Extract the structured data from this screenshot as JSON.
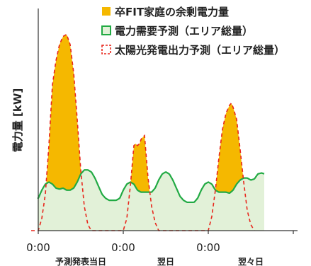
{
  "chart_data": {
    "type": "area",
    "ylabel": "電力量 [kW]",
    "x_ticks": [
      "0:00",
      "0:00",
      "0:00"
    ],
    "day_labels": [
      "予測発表当日",
      "翌日",
      "翌々日"
    ],
    "x_unit": "hours",
    "xlim": [
      -6,
      66
    ],
    "ylim": [
      0,
      1
    ],
    "legend": {
      "placement": "top-right",
      "items": [
        {
          "label": "卒FIT家庭の余剰電力量",
          "style": "filled-square",
          "color": "#f5b800"
        },
        {
          "label": "電力需要予測（エリア総量）",
          "style": "outline-square",
          "color": "#22aa44",
          "fill": "#e2f1d8"
        },
        {
          "label": "太陽光発電出力予測（エリア総量）",
          "style": "dashed-square",
          "color": "#e8261c"
        }
      ]
    },
    "series": [
      {
        "name": "電力需要予測（エリア総量）",
        "color": "#22aa44",
        "fill": "#e2f1d8",
        "points": [
          [
            -6,
            0.22
          ],
          [
            -4,
            0.16
          ],
          [
            -2.5,
            0.15
          ],
          [
            -1,
            0.15
          ],
          [
            0,
            0.16
          ],
          [
            1,
            0.2
          ],
          [
            2,
            0.23
          ],
          [
            3,
            0.24
          ],
          [
            4,
            0.23
          ],
          [
            5,
            0.21
          ],
          [
            6,
            0.205
          ],
          [
            7,
            0.21
          ],
          [
            8,
            0.2
          ],
          [
            9,
            0.2
          ],
          [
            10,
            0.21
          ],
          [
            11,
            0.24
          ],
          [
            12,
            0.28
          ],
          [
            13,
            0.3
          ],
          [
            14,
            0.3
          ],
          [
            15,
            0.29
          ],
          [
            16,
            0.26
          ],
          [
            17,
            0.22
          ],
          [
            18,
            0.18
          ],
          [
            19,
            0.16
          ],
          [
            20,
            0.15
          ],
          [
            22,
            0.15
          ],
          [
            23,
            0.16
          ],
          [
            24,
            0.2
          ],
          [
            25,
            0.23
          ],
          [
            26,
            0.24
          ],
          [
            27,
            0.23
          ],
          [
            28,
            0.2
          ],
          [
            29,
            0.19
          ],
          [
            30,
            0.19
          ],
          [
            31,
            0.19
          ],
          [
            32,
            0.19
          ],
          [
            33,
            0.21
          ],
          [
            34,
            0.25
          ],
          [
            35,
            0.28
          ],
          [
            36,
            0.29
          ],
          [
            37,
            0.28
          ],
          [
            38,
            0.25
          ],
          [
            39,
            0.21
          ],
          [
            40,
            0.17
          ],
          [
            41,
            0.15
          ],
          [
            42,
            0.14
          ],
          [
            44,
            0.14
          ],
          [
            45,
            0.16
          ],
          [
            46,
            0.2
          ],
          [
            47,
            0.23
          ],
          [
            48,
            0.24
          ],
          [
            49,
            0.23
          ],
          [
            50,
            0.2
          ],
          [
            51,
            0.19
          ],
          [
            52,
            0.19
          ],
          [
            53,
            0.19
          ],
          [
            54,
            0.185
          ],
          [
            55,
            0.2
          ],
          [
            56,
            0.23
          ],
          [
            57,
            0.25
          ],
          [
            58,
            0.26
          ],
          [
            59,
            0.26
          ],
          [
            60,
            0.25
          ],
          [
            61,
            0.255
          ],
          [
            62,
            0.28
          ],
          [
            63,
            0.285
          ],
          [
            64,
            0.28
          ]
        ]
      },
      {
        "name": "太陽光発電出力予測（エリア総量）",
        "color": "#e8261c",
        "dash": "5,4",
        "points": [
          [
            -2,
            0
          ],
          [
            0,
            0
          ],
          [
            1,
            0.06
          ],
          [
            2,
            0.18
          ],
          [
            3,
            0.42
          ],
          [
            4,
            0.72
          ],
          [
            5,
            0.84
          ],
          [
            6,
            0.92
          ],
          [
            7,
            0.96
          ],
          [
            8,
            0.97
          ],
          [
            9,
            0.92
          ],
          [
            10,
            0.78
          ],
          [
            11,
            0.55
          ],
          [
            12,
            0.3
          ],
          [
            13,
            0.12
          ],
          [
            14,
            0.03
          ],
          [
            15,
            0
          ],
          [
            24,
            0
          ],
          [
            25,
            0.06
          ],
          [
            26,
            0.22
          ],
          [
            27,
            0.42
          ],
          [
            27.5,
            0.43
          ],
          [
            28,
            0.42
          ],
          [
            28.6,
            0.43
          ],
          [
            29,
            0.45
          ],
          [
            29.4,
            0.46
          ],
          [
            30,
            0.47
          ],
          [
            31,
            0.26
          ],
          [
            32,
            0.12
          ],
          [
            33,
            0.04
          ],
          [
            34,
            0
          ],
          [
            48,
            0
          ],
          [
            49,
            0.07
          ],
          [
            50,
            0.2
          ],
          [
            51,
            0.36
          ],
          [
            52,
            0.5
          ],
          [
            53,
            0.58
          ],
          [
            54,
            0.62
          ],
          [
            54.5,
            0.63
          ],
          [
            55,
            0.61
          ],
          [
            56,
            0.55
          ],
          [
            57,
            0.4
          ],
          [
            58,
            0.24
          ],
          [
            59,
            0.1
          ],
          [
            60,
            0.03
          ],
          [
            61,
            0
          ]
        ]
      }
    ]
  }
}
